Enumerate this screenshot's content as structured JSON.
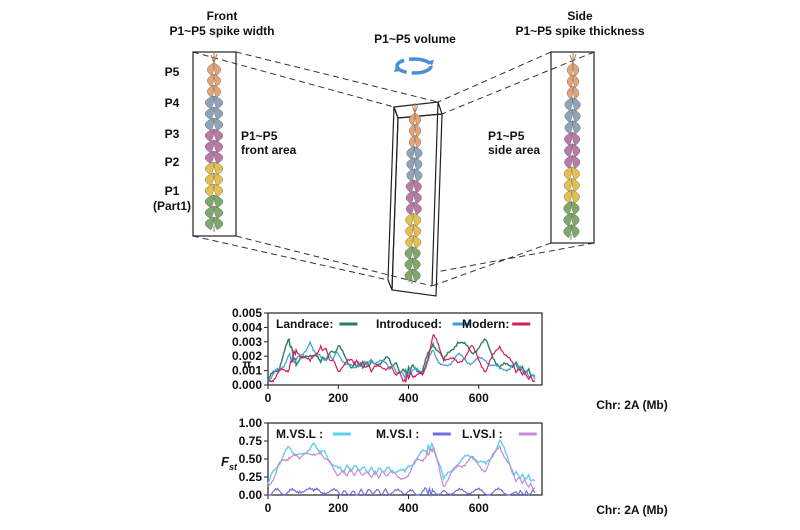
{
  "diagram": {
    "front_title": "Front",
    "front_subtitle": "P1~P5 spike width",
    "volume_title": "P1~P5 volume",
    "side_title": "Side",
    "side_subtitle": "P1~P5 spike thickness",
    "part_labels": [
      "P5",
      "P4",
      "P3",
      "P2",
      "P1"
    ],
    "part1_note": "(Part1)",
    "front_area_line1": "P1~P5",
    "front_area_line2": "front area",
    "side_area_line1": "P1~P5",
    "side_area_line2": "side area",
    "part_colors": {
      "P1": "#7fa86a",
      "P2": "#e6c04e",
      "P3": "#b97aa8",
      "P4": "#8fa4b8",
      "P5": "#e5a376"
    },
    "rotation_icon_color": "#4a8fd6"
  },
  "chart_data": [
    {
      "type": "line",
      "ylabel": "π",
      "xlabel": "Chr: 2A (Mb)",
      "xlim": [
        0,
        780
      ],
      "ylim": [
        0,
        0.005
      ],
      "x_ticks": [
        0,
        200,
        400,
        600
      ],
      "y_ticks": [
        "0.000",
        "0.001",
        "0.002",
        "0.003",
        "0.004",
        "0.005"
      ],
      "y_tick_values": [
        0,
        0.001,
        0.002,
        0.003,
        0.004,
        0.005
      ],
      "legend_position": "top",
      "series": [
        {
          "name": "Landrace:",
          "color": "#2e7d5b",
          "values": [
            [
              0,
              0.0003
            ],
            [
              30,
              0.0012
            ],
            [
              60,
              0.0031
            ],
            [
              80,
              0.0014
            ],
            [
              120,
              0.0022
            ],
            [
              150,
              0.0016
            ],
            [
              200,
              0.0026
            ],
            [
              240,
              0.0013
            ],
            [
              300,
              0.0015
            ],
            [
              340,
              0.0018
            ],
            [
              390,
              0.0008
            ],
            [
              410,
              0.0012
            ],
            [
              440,
              0.001
            ],
            [
              470,
              0.003
            ],
            [
              500,
              0.0016
            ],
            [
              540,
              0.0031
            ],
            [
              580,
              0.0023
            ],
            [
              620,
              0.003
            ],
            [
              660,
              0.0012
            ],
            [
              700,
              0.0015
            ],
            [
              760,
              0.0006
            ]
          ]
        },
        {
          "name": "Introduced:",
          "color": "#3b9fd9",
          "values": [
            [
              0,
              0.0004
            ],
            [
              30,
              0.001
            ],
            [
              60,
              0.002
            ],
            [
              80,
              0.0016
            ],
            [
              120,
              0.003
            ],
            [
              150,
              0.0018
            ],
            [
              200,
              0.0021
            ],
            [
              240,
              0.0012
            ],
            [
              300,
              0.0017
            ],
            [
              340,
              0.0014
            ],
            [
              390,
              0.0006
            ],
            [
              410,
              0.001
            ],
            [
              440,
              0.0009
            ],
            [
              470,
              0.0023
            ],
            [
              500,
              0.0013
            ],
            [
              540,
              0.002
            ],
            [
              580,
              0.0016
            ],
            [
              620,
              0.0018
            ],
            [
              660,
              0.001
            ],
            [
              700,
              0.0014
            ],
            [
              760,
              0.0004
            ]
          ]
        },
        {
          "name": "Modern:",
          "color": "#d81b60",
          "values": [
            [
              0,
              0.0002
            ],
            [
              30,
              0.0008
            ],
            [
              60,
              0.0012
            ],
            [
              80,
              0.0025
            ],
            [
              120,
              0.0015
            ],
            [
              150,
              0.0028
            ],
            [
              200,
              0.0011
            ],
            [
              240,
              0.0017
            ],
            [
              300,
              0.0011
            ],
            [
              340,
              0.0013
            ],
            [
              390,
              0.0004
            ],
            [
              410,
              0.0008
            ],
            [
              440,
              0.0006
            ],
            [
              470,
              0.0034
            ],
            [
              500,
              0.002
            ],
            [
              540,
              0.0015
            ],
            [
              580,
              0.0026
            ],
            [
              620,
              0.001
            ],
            [
              660,
              0.0028
            ],
            [
              700,
              0.0012
            ],
            [
              760,
              0.0003
            ]
          ]
        }
      ]
    },
    {
      "type": "line",
      "ylabel": "F",
      "ylabel_sub": "st",
      "xlabel": "Chr: 2A (Mb)",
      "xlim": [
        0,
        780
      ],
      "ylim": [
        0,
        1.0
      ],
      "x_ticks": [
        0,
        200,
        400,
        600
      ],
      "y_ticks": [
        "0.00",
        "0.25",
        "0.50",
        "0.75",
        "1.00"
      ],
      "y_tick_values": [
        0,
        0.25,
        0.5,
        0.75,
        1.0
      ],
      "legend_position": "top",
      "series": [
        {
          "name": "M.VS.L :",
          "color": "#5fd0ec",
          "values": [
            [
              0,
              0.15
            ],
            [
              30,
              0.45
            ],
            [
              60,
              0.65
            ],
            [
              90,
              0.55
            ],
            [
              130,
              0.7
            ],
            [
              160,
              0.6
            ],
            [
              200,
              0.35
            ],
            [
              250,
              0.38
            ],
            [
              300,
              0.33
            ],
            [
              350,
              0.36
            ],
            [
              390,
              0.3
            ],
            [
              420,
              0.5
            ],
            [
              450,
              0.62
            ],
            [
              470,
              0.7
            ],
            [
              500,
              0.2
            ],
            [
              540,
              0.45
            ],
            [
              580,
              0.55
            ],
            [
              620,
              0.4
            ],
            [
              660,
              0.75
            ],
            [
              700,
              0.3
            ],
            [
              760,
              0.2
            ]
          ]
        },
        {
          "name": "M.VS.I :",
          "color": "#6f6ee0",
          "values": [
            [
              0,
              0.02
            ],
            [
              30,
              0.05
            ],
            [
              60,
              0.03
            ],
            [
              90,
              0.08
            ],
            [
              130,
              0.04
            ],
            [
              160,
              0.06
            ],
            [
              200,
              0.03
            ],
            [
              250,
              0.02
            ],
            [
              300,
              0.05
            ],
            [
              350,
              0.03
            ],
            [
              390,
              0.04
            ],
            [
              420,
              0.02
            ],
            [
              450,
              0.06
            ],
            [
              470,
              0.03
            ],
            [
              500,
              0.05
            ],
            [
              540,
              0.04
            ],
            [
              580,
              0.06
            ],
            [
              620,
              0.03
            ],
            [
              660,
              0.05
            ],
            [
              700,
              0.02
            ],
            [
              760,
              0.03
            ]
          ]
        },
        {
          "name": "L.VS.I :",
          "color": "#c38ad8",
          "values": [
            [
              0,
              0.1
            ],
            [
              30,
              0.4
            ],
            [
              60,
              0.55
            ],
            [
              90,
              0.5
            ],
            [
              130,
              0.6
            ],
            [
              160,
              0.5
            ],
            [
              200,
              0.3
            ],
            [
              250,
              0.32
            ],
            [
              300,
              0.28
            ],
            [
              350,
              0.3
            ],
            [
              390,
              0.25
            ],
            [
              420,
              0.45
            ],
            [
              450,
              0.55
            ],
            [
              470,
              0.65
            ],
            [
              500,
              0.15
            ],
            [
              540,
              0.4
            ],
            [
              580,
              0.5
            ],
            [
              620,
              0.35
            ],
            [
              660,
              0.7
            ],
            [
              700,
              0.25
            ],
            [
              760,
              0.1
            ]
          ]
        }
      ]
    }
  ]
}
